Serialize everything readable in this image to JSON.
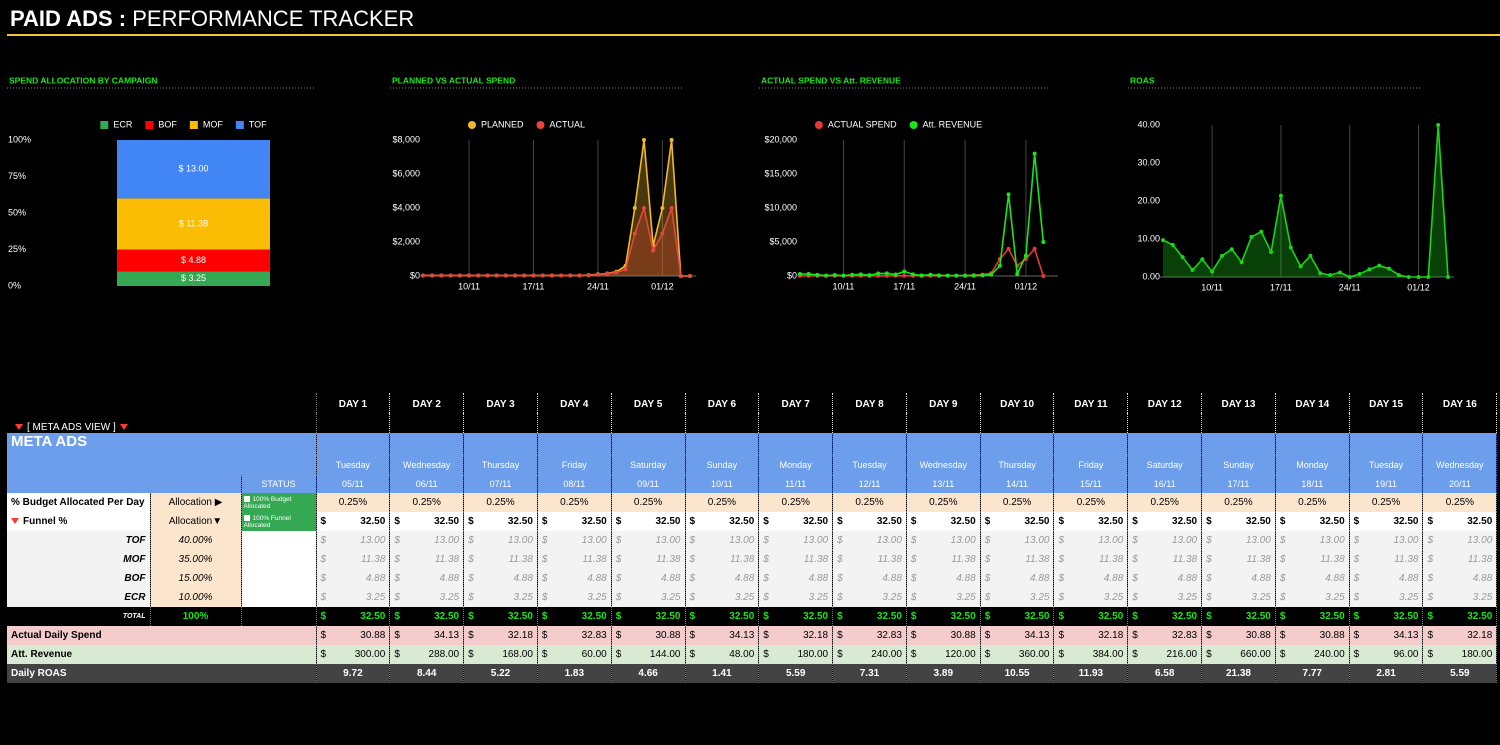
{
  "header": {
    "title_bold": "PAID ADS :",
    "title_rest": "PERFORMANCE TRACKER"
  },
  "chart_data": [
    {
      "type": "bar",
      "stacking": "percent",
      "title": "SPEND ALLOCATION BY CAMPAIGN",
      "legend": "top",
      "categories": [
        null
      ],
      "series": [
        {
          "name": "ECR",
          "color": "#34a853",
          "values": [
            3.25
          ],
          "value_labels": [
            "$ 3.25"
          ]
        },
        {
          "name": "BOF",
          "color": "#ff0000",
          "values": [
            4.88
          ],
          "value_labels": [
            "$ 4.88"
          ]
        },
        {
          "name": "MOF",
          "color": "#fbbc04",
          "values": [
            11.38
          ],
          "value_labels": [
            "$ 11.38"
          ]
        },
        {
          "name": "TOF",
          "color": "#4285f4",
          "values": [
            13.0
          ],
          "value_labels": [
            "$ 13.00"
          ]
        }
      ],
      "ylim": [
        0,
        100
      ],
      "yticks": [
        {
          "value": 0,
          "label": "0%"
        },
        {
          "value": 25,
          "label": "25%"
        },
        {
          "value": 50,
          "label": "50%"
        },
        {
          "value": 75,
          "label": "75%"
        },
        {
          "value": 100,
          "label": "100%"
        }
      ]
    },
    {
      "type": "area",
      "title": "PLANNED VS ACTUAL SPEND",
      "legend": "top",
      "grid": "x",
      "markers": true,
      "categories": [
        null,
        null,
        null,
        null,
        null,
        "10/11",
        null,
        null,
        null,
        null,
        null,
        null,
        "17/11",
        null,
        null,
        null,
        null,
        null,
        null,
        "24/11",
        null,
        null,
        null,
        null,
        null,
        null,
        "01/12",
        null,
        null,
        null
      ],
      "series": [
        {
          "name": "PLANNED",
          "color": "#f1b82d",
          "values": [
            32.5,
            32.5,
            32.5,
            32.5,
            32.5,
            32.5,
            32.5,
            32.5,
            32.5,
            32.5,
            32.5,
            32.5,
            32.5,
            32.5,
            32.5,
            32.5,
            32.5,
            32.5,
            50,
            100,
            150,
            250,
            600,
            4000,
            8000,
            1800,
            4000,
            8000,
            0,
            0
          ]
        },
        {
          "name": "ACTUAL",
          "color": "#e8453c",
          "values": [
            30.88,
            34.13,
            32.18,
            32.83,
            30.88,
            34.13,
            32.18,
            32.83,
            30.88,
            34.13,
            32.18,
            32.83,
            30.88,
            30.88,
            34.13,
            32.18,
            30,
            32,
            40,
            80,
            130,
            200,
            400,
            2500,
            4000,
            1500,
            2500,
            4000,
            0,
            0
          ]
        }
      ],
      "ylim": [
        0,
        8000
      ],
      "yticks": [
        {
          "value": 0,
          "label": "$0"
        },
        {
          "value": 2000,
          "label": "$2,000"
        },
        {
          "value": 4000,
          "label": "$4,000"
        },
        {
          "value": 6000,
          "label": "$6,000"
        },
        {
          "value": 8000,
          "label": "$8,000"
        }
      ]
    },
    {
      "type": "line",
      "title": "ACTUAL SPEND VS Att. REVENUE",
      "legend": "top",
      "grid": "x",
      "markers": true,
      "categories": [
        null,
        null,
        null,
        null,
        null,
        "10/11",
        null,
        null,
        null,
        null,
        null,
        null,
        "17/11",
        null,
        null,
        null,
        null,
        null,
        null,
        "24/11",
        null,
        null,
        null,
        null,
        null,
        null,
        "01/12",
        null,
        null,
        null
      ],
      "series": [
        {
          "name": "ACTUAL SPEND",
          "color": "#e53935",
          "values": [
            30.88,
            34.13,
            32.18,
            32.83,
            30.88,
            34.13,
            32.18,
            32.83,
            30.88,
            34.13,
            32.18,
            32.83,
            30.88,
            30.88,
            34.13,
            32.18,
            30,
            32,
            40,
            80,
            130,
            200,
            400,
            2500,
            4000,
            1500,
            2500,
            4000,
            0,
            null
          ]
        },
        {
          "name": "Att. REVENUE",
          "color": "#19e619",
          "values": [
            300,
            288,
            168,
            60,
            144,
            48,
            180,
            240,
            120,
            360,
            384,
            216,
            660,
            240,
            96,
            180,
            100,
            80,
            60,
            40,
            50,
            100,
            200,
            1500,
            12000,
            300,
            3000,
            18000,
            5000,
            null
          ]
        }
      ],
      "ylim": [
        0,
        20000
      ],
      "yticks": [
        {
          "value": 0,
          "label": "$0"
        },
        {
          "value": 5000,
          "label": "$5,000"
        },
        {
          "value": 10000,
          "label": "$10,000"
        },
        {
          "value": 15000,
          "label": "$15,000"
        },
        {
          "value": 20000,
          "label": "$20,000"
        }
      ]
    },
    {
      "type": "area",
      "title": "ROAS",
      "grid": "x",
      "markers": true,
      "categories": [
        null,
        null,
        null,
        null,
        null,
        "10/11",
        null,
        null,
        null,
        null,
        null,
        null,
        "17/11",
        null,
        null,
        null,
        null,
        null,
        null,
        "24/11",
        null,
        null,
        null,
        null,
        null,
        null,
        "01/12",
        null,
        null,
        null
      ],
      "series": [
        {
          "color": "#19d419",
          "values": [
            9.72,
            8.44,
            5.22,
            1.83,
            4.66,
            1.41,
            5.59,
            7.31,
            3.89,
            10.55,
            11.93,
            6.58,
            21.38,
            7.77,
            2.81,
            5.59,
            1.0,
            0.5,
            1.2,
            0.0,
            0.8,
            2.0,
            3.0,
            2.2,
            0.5,
            0.0,
            0.0,
            0.0,
            40.0,
            0.0
          ]
        }
      ],
      "ylim": [
        0,
        40
      ],
      "yticks": [
        {
          "value": 0,
          "label": "0.00"
        },
        {
          "value": 10,
          "label": "10.00"
        },
        {
          "value": 20,
          "label": "20.00"
        },
        {
          "value": 30,
          "label": "30.00"
        },
        {
          "value": 40,
          "label": "40.00"
        }
      ]
    }
  ],
  "table": {
    "section_view": "[ META ADS VIEW ]",
    "section_title": "META ADS",
    "status_header": "STATUS",
    "currency": "$",
    "days": [
      "DAY 1",
      "DAY 2",
      "DAY 3",
      "DAY 4",
      "DAY 5",
      "DAY 6",
      "DAY 7",
      "DAY 8",
      "DAY 9",
      "DAY 10",
      "DAY 11",
      "DAY 12",
      "DAY 13",
      "DAY 14",
      "DAY 15",
      "DAY 16"
    ],
    "weekdays": [
      "Tuesday",
      "Wednesday",
      "Thursday",
      "Friday",
      "Saturday",
      "Sunday",
      "Monday",
      "Tuesday",
      "Wednesday",
      "Thursday",
      "Friday",
      "Saturday",
      "Sunday",
      "Monday",
      "Tuesday",
      "Wednesday"
    ],
    "dates": [
      "05/11",
      "06/11",
      "07/11",
      "08/11",
      "09/11",
      "10/11",
      "11/11",
      "12/11",
      "13/11",
      "14/11",
      "15/11",
      "16/11",
      "17/11",
      "18/11",
      "19/11",
      "20/11"
    ],
    "budget": {
      "label": "% Budget Allocated Per Day",
      "allocation": "Allocation ▶",
      "status": "100% Budget Allocated",
      "values": [
        "0.25%",
        "0.25%",
        "0.25%",
        "0.25%",
        "0.25%",
        "0.25%",
        "0.25%",
        "0.25%",
        "0.25%",
        "0.25%",
        "0.25%",
        "0.25%",
        "0.25%",
        "0.25%",
        "0.25%",
        "0.25%"
      ]
    },
    "funnel": {
      "label": "Funnel %",
      "allocation": "Allocation▼",
      "status": "100% Funnel Allocated",
      "values": [
        "32.50",
        "32.50",
        "32.50",
        "32.50",
        "32.50",
        "32.50",
        "32.50",
        "32.50",
        "32.50",
        "32.50",
        "32.50",
        "32.50",
        "32.50",
        "32.50",
        "32.50",
        "32.50"
      ]
    },
    "campaigns": [
      {
        "label": "TOF",
        "share": "40.00%",
        "values": [
          "13.00",
          "13.00",
          "13.00",
          "13.00",
          "13.00",
          "13.00",
          "13.00",
          "13.00",
          "13.00",
          "13.00",
          "13.00",
          "13.00",
          "13.00",
          "13.00",
          "13.00",
          "13.00"
        ]
      },
      {
        "label": "MOF",
        "share": "35.00%",
        "values": [
          "11.38",
          "11.38",
          "11.38",
          "11.38",
          "11.38",
          "11.38",
          "11.38",
          "11.38",
          "11.38",
          "11.38",
          "11.38",
          "11.38",
          "11.38",
          "11.38",
          "11.38",
          "11.38"
        ]
      },
      {
        "label": "BOF",
        "share": "15.00%",
        "values": [
          "4.88",
          "4.88",
          "4.88",
          "4.88",
          "4.88",
          "4.88",
          "4.88",
          "4.88",
          "4.88",
          "4.88",
          "4.88",
          "4.88",
          "4.88",
          "4.88",
          "4.88",
          "4.88"
        ]
      },
      {
        "label": "ECR",
        "share": "10.00%",
        "values": [
          "3.25",
          "3.25",
          "3.25",
          "3.25",
          "3.25",
          "3.25",
          "3.25",
          "3.25",
          "3.25",
          "3.25",
          "3.25",
          "3.25",
          "3.25",
          "3.25",
          "3.25",
          "3.25"
        ]
      }
    ],
    "total": {
      "label": "TOTAL",
      "share": "100%",
      "values": [
        "32.50",
        "32.50",
        "32.50",
        "32.50",
        "32.50",
        "32.50",
        "32.50",
        "32.50",
        "32.50",
        "32.50",
        "32.50",
        "32.50",
        "32.50",
        "32.50",
        "32.50",
        "32.50"
      ]
    },
    "actual_spend": {
      "label": "Actual Daily Spend",
      "values": [
        "30.88",
        "34.13",
        "32.18",
        "32.83",
        "30.88",
        "34.13",
        "32.18",
        "32.83",
        "30.88",
        "34.13",
        "32.18",
        "32.83",
        "30.88",
        "30.88",
        "34.13",
        "32.18"
      ]
    },
    "revenue": {
      "label": "Att. Revenue",
      "values": [
        "300.00",
        "288.00",
        "168.00",
        "60.00",
        "144.00",
        "48.00",
        "180.00",
        "240.00",
        "120.00",
        "360.00",
        "384.00",
        "216.00",
        "660.00",
        "240.00",
        "96.00",
        "180.00"
      ]
    },
    "roas": {
      "label": "Daily ROAS",
      "values": [
        "9.72",
        "8.44",
        "5.22",
        "1.83",
        "4.66",
        "1.41",
        "5.59",
        "7.31",
        "3.89",
        "10.55",
        "11.93",
        "6.58",
        "21.38",
        "7.77",
        "2.81",
        "5.59"
      ]
    }
  }
}
